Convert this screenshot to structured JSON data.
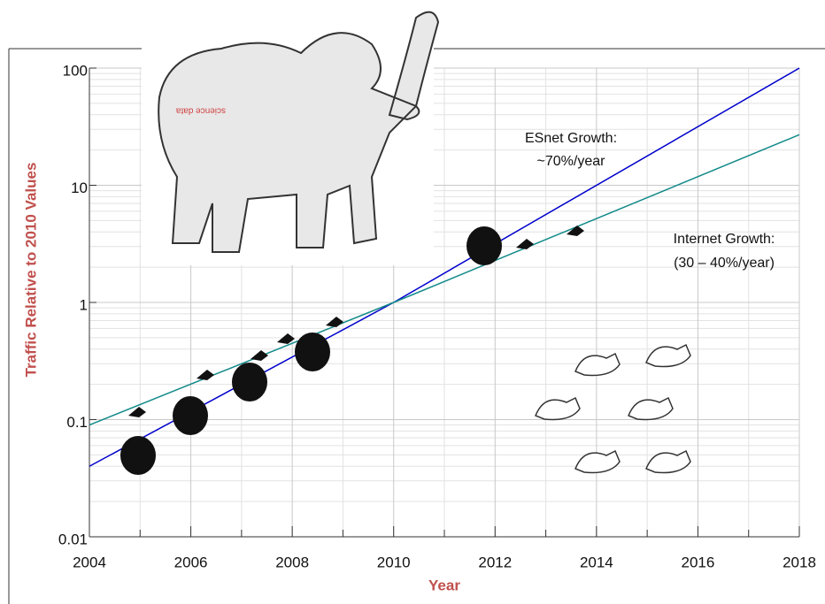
{
  "chart_data": {
    "type": "line",
    "x": [
      2004,
      2010,
      2018
    ],
    "series": [
      {
        "name": "ESnet Growth",
        "color": "#0000cc",
        "values": [
          0.04,
          1,
          100
        ]
      },
      {
        "name": "Internet Growth",
        "color": "#138a8a",
        "values": [
          0.09,
          1,
          27
        ]
      }
    ],
    "annotations": [
      "ESnet Growth:",
      "~70%/year",
      "Internet Growth:",
      "(30 – 40%/year)"
    ],
    "x_label": "Year",
    "y_label": "Traffic Relative to 2010 Values",
    "label_color": "#c0504d",
    "xlim": [
      2004,
      2018
    ],
    "xticks": [
      2004,
      2006,
      2008,
      2010,
      2012,
      2014,
      2016,
      2018
    ],
    "ylim": [
      0.01,
      100
    ],
    "yticks": [
      0.01,
      0.1,
      1,
      10,
      100
    ],
    "log_y": true,
    "grid": true
  }
}
